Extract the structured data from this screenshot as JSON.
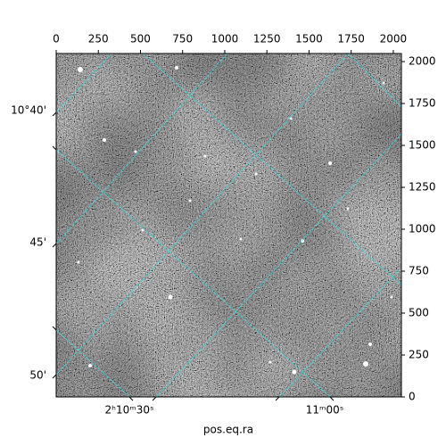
{
  "chart_data": {
    "type": "image",
    "xlabel": "pos.eq.ra",
    "xlim": [
      0,
      2048
    ],
    "xticks": [
      0,
      250,
      500,
      750,
      1000,
      1250,
      1500,
      1750,
      2000
    ],
    "ylim": [
      0,
      2048
    ],
    "yticks": [
      0,
      250,
      500,
      750,
      1000,
      1250,
      1500,
      1750,
      2000
    ],
    "ra_tick_labels": [
      "2ʰ10ᵐ30ˢ",
      "11ᵐ00ˢ"
    ],
    "dec_tick_labels": [
      "10°40'",
      "45'",
      "50'"
    ],
    "grid": true,
    "grid_color": "#3fd6d6"
  }
}
